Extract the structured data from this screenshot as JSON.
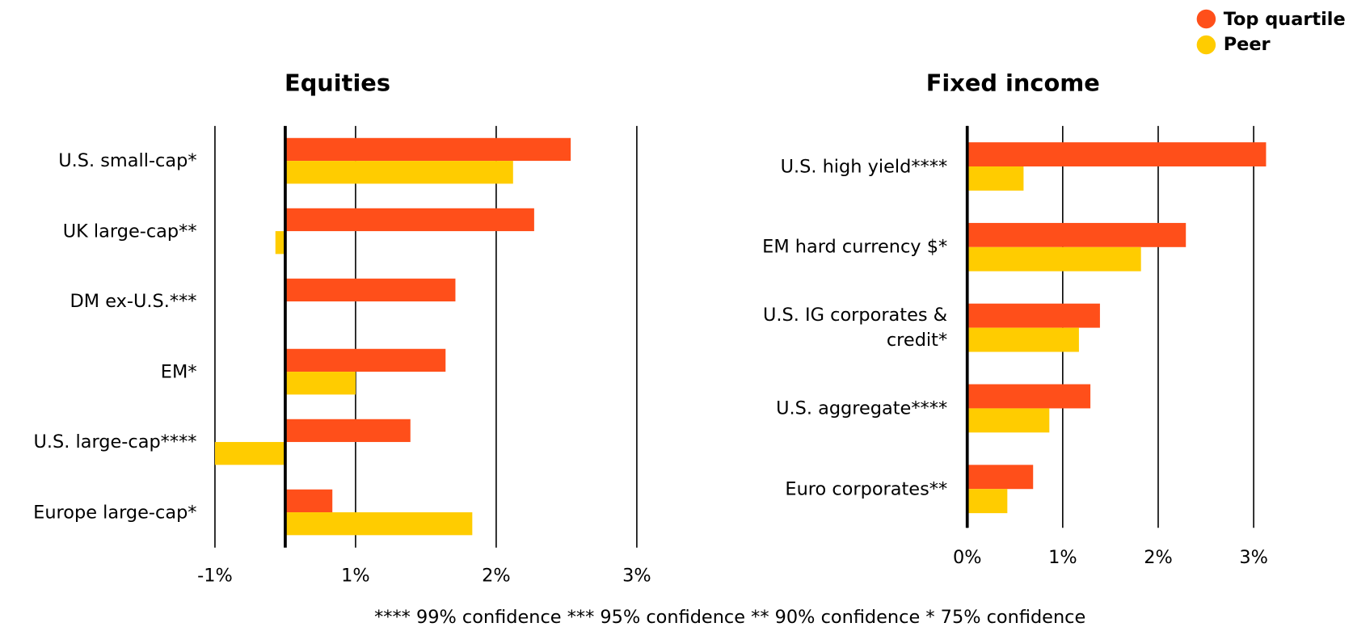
{
  "chart_data": [
    {
      "type": "bar",
      "orientation": "horizontal",
      "title": "Equities",
      "categories": [
        "U.S. small-cap*",
        "UK large-cap**",
        "DM ex-U.S.***",
        "EM*",
        "U.S. large-cap****",
        "Europe large-cap*"
      ],
      "series": [
        {
          "name": "Top quartile",
          "color": "#FF4F1A",
          "values": [
            2.53,
            2.27,
            1.71,
            1.64,
            1.39,
            0.67
          ]
        },
        {
          "name": "Peer",
          "color": "#FFCC00",
          "values": [
            2.12,
            -0.14,
            null,
            1.0,
            -1.0,
            1.83
          ]
        }
      ],
      "xlim": [
        -1,
        3
      ],
      "xticks": [
        {
          "value": -1,
          "label": "-1%"
        },
        {
          "value": 1,
          "label": "1%"
        },
        {
          "value": 2,
          "label": "2%"
        },
        {
          "value": 3,
          "label": "3%"
        }
      ],
      "grid": true
    },
    {
      "type": "bar",
      "orientation": "horizontal",
      "title": "Fixed income",
      "categories": [
        "U.S. high yield****",
        "EM  hard currency $*",
        "U.S. IG corporates & credit*",
        "U.S. aggregate****",
        "Euro corporates**"
      ],
      "series": [
        {
          "name": "Top quartile",
          "color": "#FF4F1A",
          "values": [
            3.13,
            2.29,
            1.39,
            1.29,
            0.69
          ]
        },
        {
          "name": "Peer",
          "color": "#FFCC00",
          "values": [
            0.59,
            1.82,
            1.17,
            0.86,
            0.42
          ]
        }
      ],
      "xlim": [
        0,
        3
      ],
      "xticks": [
        {
          "value": 0,
          "label": "0%"
        },
        {
          "value": 1,
          "label": "1%"
        },
        {
          "value": 2,
          "label": "2%"
        },
        {
          "value": 3,
          "label": "3%"
        }
      ],
      "grid": true
    }
  ],
  "footnote": "**** 99% confidence *** 95% confidence ** 90% confidence * 75% confidence"
}
